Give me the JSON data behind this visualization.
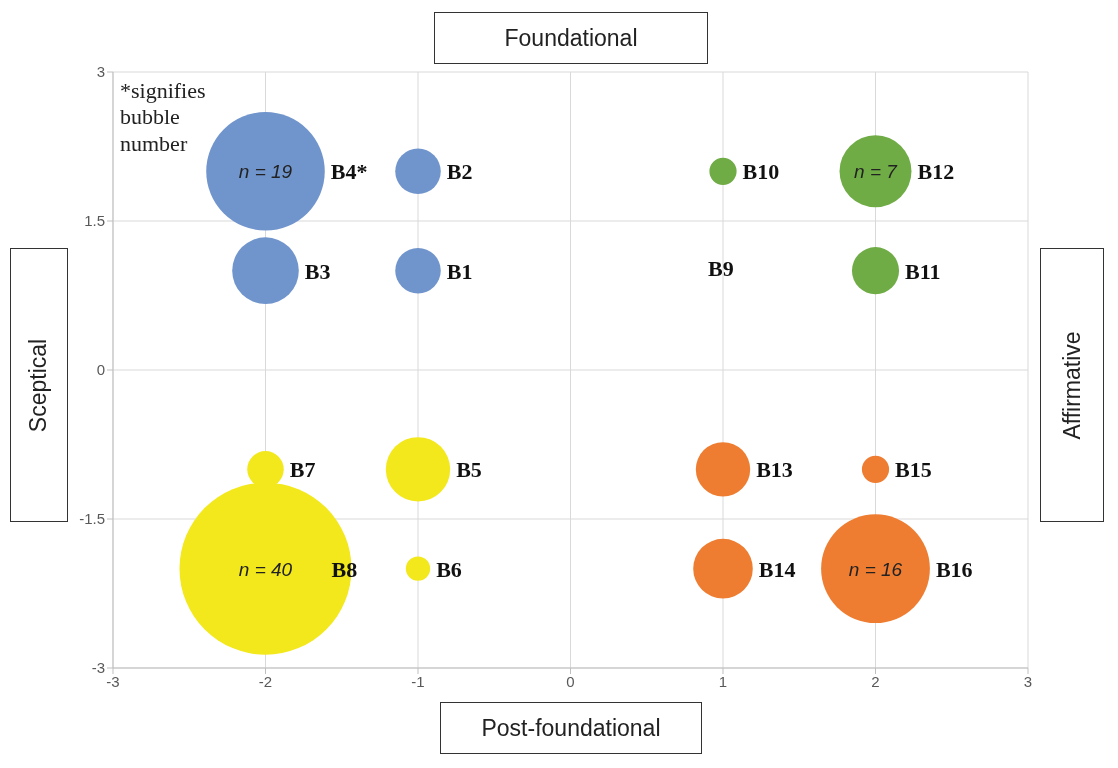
{
  "chart_data": {
    "type": "bubble",
    "xlim": [
      -3,
      3
    ],
    "xticks": [
      -3,
      -2,
      -1,
      0,
      1,
      2,
      3
    ],
    "ylim": [
      -3,
      3
    ],
    "yticks": [
      -3,
      -1.5,
      0,
      1.5,
      3
    ],
    "grid": true,
    "series": [
      {
        "color": "#7094cc",
        "x": [
          -1,
          -1,
          -2,
          -2
        ],
        "values": [
          1,
          2,
          1,
          2
        ],
        "sizes": [
          0.07,
          0.07,
          0.15,
          0.475
        ]
      },
      {
        "color": "#f2e81b",
        "x": [
          -1,
          -1,
          -2,
          -2
        ],
        "values": [
          -1,
          -2,
          -1,
          -2
        ],
        "sizes": [
          0.14,
          0.02,
          0.045,
          1
        ]
      },
      {
        "color": "#6fac46",
        "x": [
          1,
          2,
          2
        ],
        "values": [
          2,
          1,
          2
        ],
        "sizes": [
          0.025,
          0.075,
          0.175
        ]
      },
      {
        "color": "#ee7d31",
        "x": [
          1,
          1,
          2,
          2
        ],
        "values": [
          -1,
          -2,
          -1,
          -2
        ],
        "sizes": [
          0.1,
          0.12,
          0.025,
          0.4
        ]
      }
    ],
    "annotations": [
      "Foundational",
      "Post-foundational",
      "Sceptical",
      "Affirmative",
      "*signifies bubble number",
      "B9",
      {
        "text": "n = 19",
        "x": -2,
        "y": 2
      },
      {
        "text": "n = 40",
        "x": -2,
        "y": -2
      },
      {
        "text": "n = 7",
        "x": 2,
        "y": 2
      },
      {
        "text": "n = 16",
        "x": 2,
        "y": -2
      },
      {
        "text": "B1",
        "x": -1,
        "y": 1
      },
      {
        "text": "B2",
        "x": -1,
        "y": 2
      },
      {
        "text": "B3",
        "x": -2,
        "y": 1
      },
      {
        "text": "B4*",
        "x": -2,
        "y": 2
      },
      {
        "text": "B5",
        "x": -1,
        "y": -1
      },
      {
        "text": "B6",
        "x": -1,
        "y": -2
      },
      {
        "text": "B8",
        "x": -2,
        "y": -2
      },
      {
        "text": "B7",
        "x": -2,
        "y": -1
      },
      {
        "text": "B10",
        "x": 1,
        "y": 2
      },
      {
        "text": "B11",
        "x": 2,
        "y": 1
      },
      {
        "text": "B12",
        "x": 2,
        "y": 2
      },
      {
        "text": "B13",
        "x": 1,
        "y": -1
      },
      {
        "text": "B14",
        "x": 1,
        "y": -2
      },
      {
        "text": "B15",
        "x": 2,
        "y": -1
      },
      {
        "text": "B16",
        "x": 2,
        "y": -2
      }
    ]
  }
}
